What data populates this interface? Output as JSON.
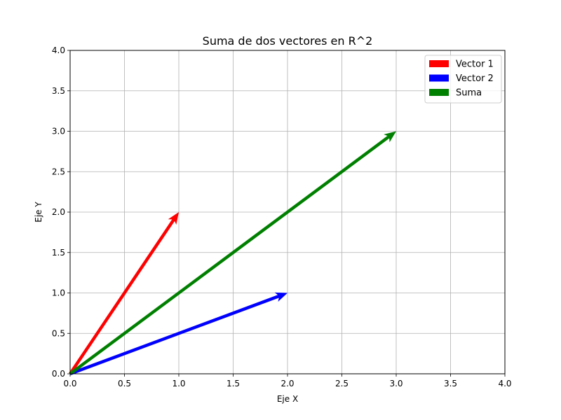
{
  "chart_data": {
    "type": "quiver",
    "title": "Suma de dos vectores en R^2",
    "xlabel": "Eje X",
    "ylabel": "Eje Y",
    "xlim": [
      0,
      4
    ],
    "ylim": [
      0,
      4
    ],
    "xticks": [
      0,
      0.5,
      1,
      1.5,
      2,
      2.5,
      3,
      3.5,
      4
    ],
    "yticks": [
      0,
      0.5,
      1,
      1.5,
      2,
      2.5,
      3,
      3.5,
      4
    ],
    "xtick_labels": [
      "0.0",
      "0.5",
      "1.0",
      "1.5",
      "2.0",
      "2.5",
      "3.0",
      "3.5",
      "4.0"
    ],
    "ytick_labels": [
      "0.0",
      "0.5",
      "1.0",
      "1.5",
      "2.0",
      "2.5",
      "3.0",
      "3.5",
      "4.0"
    ],
    "grid": true,
    "legend_position": "top-right",
    "series": [
      {
        "name": "Vector 1",
        "color": "#ff0000",
        "origin": [
          0,
          0
        ],
        "vector": [
          1,
          2
        ]
      },
      {
        "name": "Vector 2",
        "color": "#0000ff",
        "origin": [
          0,
          0
        ],
        "vector": [
          2,
          1
        ]
      },
      {
        "name": "Suma",
        "color": "#008000",
        "origin": [
          0,
          0
        ],
        "vector": [
          3,
          3
        ]
      }
    ]
  }
}
